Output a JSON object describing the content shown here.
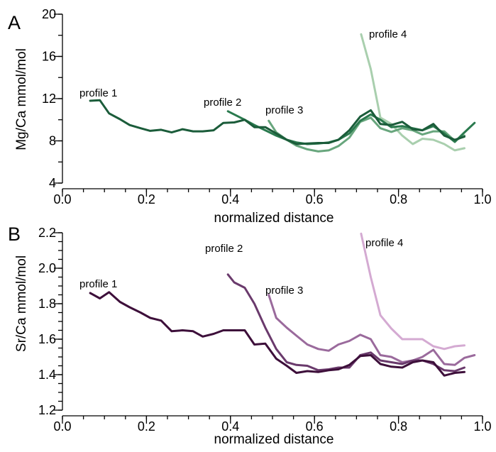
{
  "chart_data": [
    {
      "type": "line",
      "panel_label": "A",
      "xlabel": "normalized distance",
      "ylabel": "Mg/Ca mmol/mol",
      "xlim": [
        0,
        1
      ],
      "ylim": [
        4,
        20
      ],
      "x_ticks": [
        "0.0",
        "0.2",
        "0.4",
        "0.6",
        "0.8",
        "1.0"
      ],
      "y_ticks": [
        "4",
        "8",
        "12",
        "16",
        "20"
      ],
      "grid": false,
      "series": [
        {
          "name": "profile 1",
          "color": "#1b5c3a",
          "x": [
            0.066,
            0.089,
            0.111,
            0.137,
            0.16,
            0.186,
            0.209,
            0.235,
            0.26,
            0.286,
            0.311,
            0.334,
            0.36,
            0.383,
            0.409,
            0.434,
            0.457,
            0.483,
            0.509,
            0.534,
            0.557,
            0.583,
            0.609,
            0.634,
            0.657,
            0.683,
            0.709,
            0.734,
            0.757,
            0.783,
            0.809,
            0.834,
            0.857,
            0.883,
            0.909,
            0.934,
            0.957
          ],
          "y": [
            11.8,
            11.85,
            10.6,
            10.05,
            9.5,
            9.2,
            8.95,
            9.05,
            8.8,
            9.1,
            8.9,
            8.9,
            9.0,
            9.7,
            9.75,
            10.0,
            9.3,
            9.3,
            8.7,
            8.1,
            7.7,
            7.75,
            7.8,
            7.8,
            8.1,
            9.0,
            10.3,
            10.9,
            9.6,
            9.5,
            9.8,
            9.1,
            9.0,
            9.6,
            8.5,
            8.1,
            8.4
          ]
        },
        {
          "name": "profile 2",
          "color": "#2a7a4e",
          "x": [
            0.394,
            0.409,
            0.434,
            0.457,
            0.483,
            0.509,
            0.534,
            0.557,
            0.583,
            0.609,
            0.634,
            0.657,
            0.683,
            0.709,
            0.734,
            0.757,
            0.783,
            0.809,
            0.834,
            0.857,
            0.883,
            0.909,
            0.934,
            0.957,
            0.981
          ],
          "y": [
            10.8,
            10.5,
            10.0,
            9.5,
            9.0,
            8.5,
            8.1,
            7.85,
            7.7,
            7.75,
            7.85,
            8.1,
            8.7,
            9.9,
            10.5,
            10.0,
            9.3,
            9.4,
            9.2,
            9.0,
            9.4,
            8.7,
            7.9,
            8.8,
            9.7
          ]
        },
        {
          "name": "profile 3",
          "color": "#68a67d",
          "x": [
            0.491,
            0.509,
            0.534,
            0.557,
            0.583,
            0.609,
            0.634,
            0.657,
            0.683,
            0.709,
            0.734,
            0.757,
            0.783,
            0.809,
            0.834,
            0.857,
            0.883,
            0.909,
            0.934,
            0.957
          ],
          "y": [
            9.9,
            8.8,
            8.1,
            7.55,
            7.2,
            7.0,
            7.1,
            7.5,
            8.3,
            9.8,
            10.2,
            9.2,
            8.85,
            9.2,
            9.0,
            8.6,
            8.9,
            8.9,
            8.0,
            8.5
          ]
        },
        {
          "name": "profile 4",
          "color": "#a9cfae",
          "x": [
            0.711,
            0.734,
            0.757,
            0.783,
            0.809,
            0.834,
            0.857,
            0.883,
            0.909,
            0.934,
            0.957
          ],
          "y": [
            18.1,
            14.8,
            10.2,
            9.6,
            8.5,
            7.7,
            8.2,
            8.1,
            7.7,
            7.1,
            7.3
          ]
        }
      ]
    },
    {
      "type": "line",
      "panel_label": "B",
      "xlabel": "normalized distance",
      "ylabel": "Sr/Ca mmol/mol",
      "xlim": [
        0,
        1
      ],
      "ylim": [
        1.2,
        2.2
      ],
      "x_ticks": [
        "0.0",
        "0.2",
        "0.4",
        "0.6",
        "0.8",
        "1.0"
      ],
      "y_ticks": [
        "1.2",
        "1.4",
        "1.6",
        "1.8",
        "2.0",
        "2.2"
      ],
      "grid": false,
      "series": [
        {
          "name": "profile 1",
          "color": "#3d0f3a",
          "x": [
            0.066,
            0.089,
            0.111,
            0.137,
            0.16,
            0.186,
            0.209,
            0.235,
            0.26,
            0.286,
            0.311,
            0.334,
            0.36,
            0.383,
            0.409,
            0.434,
            0.457,
            0.483,
            0.509,
            0.534,
            0.557,
            0.583,
            0.609,
            0.634,
            0.657,
            0.683,
            0.709,
            0.734,
            0.757,
            0.783,
            0.809,
            0.834,
            0.857,
            0.883,
            0.909,
            0.934,
            0.957
          ],
          "y": [
            1.86,
            1.83,
            1.865,
            1.81,
            1.78,
            1.75,
            1.72,
            1.705,
            1.645,
            1.65,
            1.645,
            1.615,
            1.63,
            1.65,
            1.65,
            1.65,
            1.57,
            1.575,
            1.49,
            1.45,
            1.41,
            1.42,
            1.415,
            1.425,
            1.43,
            1.455,
            1.505,
            1.51,
            1.46,
            1.445,
            1.44,
            1.47,
            1.48,
            1.47,
            1.395,
            1.41,
            1.415
          ]
        },
        {
          "name": "profile 2",
          "color": "#6a3a6c",
          "x": [
            0.394,
            0.409,
            0.434,
            0.457,
            0.483,
            0.509,
            0.534,
            0.557,
            0.583,
            0.609,
            0.634,
            0.657,
            0.683,
            0.709,
            0.734,
            0.757,
            0.783,
            0.809,
            0.834,
            0.857,
            0.883,
            0.909,
            0.934,
            0.957
          ],
          "y": [
            1.965,
            1.92,
            1.89,
            1.8,
            1.665,
            1.545,
            1.47,
            1.455,
            1.45,
            1.425,
            1.43,
            1.44,
            1.44,
            1.51,
            1.525,
            1.48,
            1.47,
            1.46,
            1.48,
            1.48,
            1.46,
            1.425,
            1.42,
            1.44
          ]
        },
        {
          "name": "profile 3",
          "color": "#9a6a9c",
          "x": [
            0.491,
            0.509,
            0.534,
            0.557,
            0.583,
            0.609,
            0.634,
            0.657,
            0.683,
            0.709,
            0.734,
            0.757,
            0.783,
            0.809,
            0.834,
            0.857,
            0.883,
            0.909,
            0.934,
            0.957,
            0.981
          ],
          "y": [
            1.85,
            1.72,
            1.665,
            1.62,
            1.57,
            1.545,
            1.535,
            1.57,
            1.59,
            1.625,
            1.6,
            1.51,
            1.5,
            1.47,
            1.48,
            1.5,
            1.54,
            1.46,
            1.455,
            1.495,
            1.51
          ]
        },
        {
          "name": "profile 4",
          "color": "#d4aad2",
          "x": [
            0.711,
            0.734,
            0.757,
            0.783,
            0.809,
            0.834,
            0.857,
            0.883,
            0.909,
            0.934,
            0.957
          ],
          "y": [
            2.195,
            1.95,
            1.735,
            1.66,
            1.6,
            1.6,
            1.6,
            1.56,
            1.545,
            1.56,
            1.565
          ]
        }
      ]
    }
  ]
}
